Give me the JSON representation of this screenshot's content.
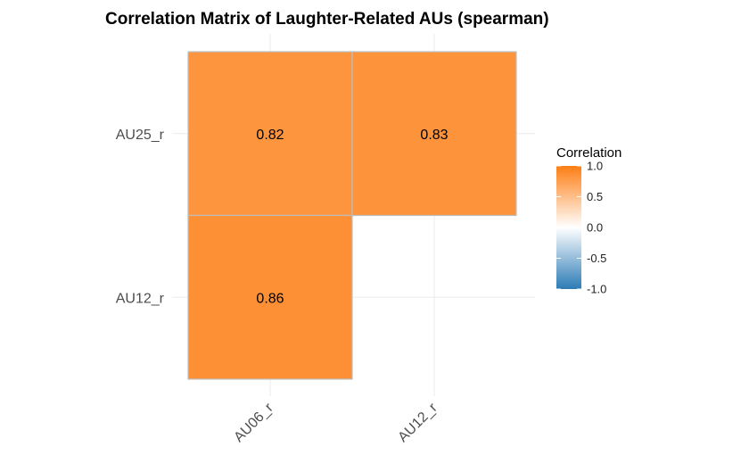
{
  "chart_data": {
    "type": "heatmap",
    "title": "Correlation Matrix of Laughter-Related AUs (spearman)",
    "xlabel": "",
    "ylabel": "",
    "x_categories": [
      "AU06_r",
      "AU12_r"
    ],
    "y_categories": [
      "AU12_r",
      "AU25_r"
    ],
    "cells": [
      {
        "x": "AU06_r",
        "y": "AU25_r",
        "value": 0.82,
        "label": "0.82"
      },
      {
        "x": "AU12_r",
        "y": "AU25_r",
        "value": 0.83,
        "label": "0.83"
      },
      {
        "x": "AU06_r",
        "y": "AU12_r",
        "value": 0.86,
        "label": "0.86"
      }
    ],
    "color_scale": {
      "low": "#2c7bb6",
      "mid": "#ffffff",
      "high": "#fd7e14",
      "limits": [
        -1,
        1
      ]
    },
    "legend": {
      "title": "Correlation",
      "placement": "right",
      "ticks": [
        {
          "value": 1.0,
          "label": "1.0"
        },
        {
          "value": 0.5,
          "label": "0.5"
        },
        {
          "value": 0.0,
          "label": "0.0"
        },
        {
          "value": -0.5,
          "label": "-0.5"
        },
        {
          "value": -1.0,
          "label": "-1.0"
        }
      ]
    },
    "grid": true
  }
}
